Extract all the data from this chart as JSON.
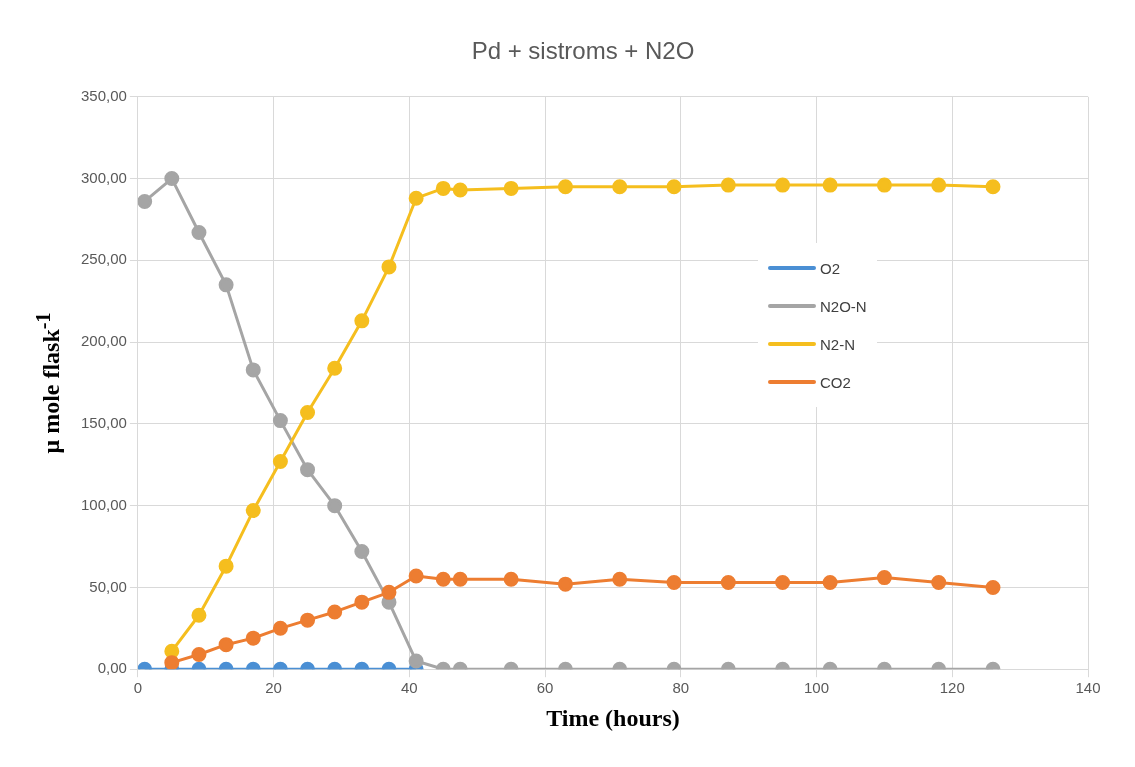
{
  "chart_data": {
    "type": "line",
    "title": "Pd + sistroms + N2O",
    "xlabel": "Time (hours)",
    "ylabel": "μ mole flask$^{-1}$",
    "xlim": [
      0,
      140
    ],
    "xticks": [
      0,
      20,
      40,
      60,
      80,
      100,
      120,
      140
    ],
    "ylim": [
      0,
      350
    ],
    "yticks": [
      {
        "value": 0,
        "label": "0,00"
      },
      {
        "value": 50,
        "label": "50,00"
      },
      {
        "value": 100,
        "label": "100,00"
      },
      {
        "value": 150,
        "label": "150,00"
      },
      {
        "value": 200,
        "label": "200,00"
      },
      {
        "value": 250,
        "label": "250,00"
      },
      {
        "value": 300,
        "label": "300,00"
      },
      {
        "value": 350,
        "label": "350,00"
      }
    ],
    "grid": true,
    "legend": "right",
    "marker": "circle",
    "line_style": "solid",
    "series": [
      {
        "name": "O2",
        "color": "#4a8fd4",
        "x": [
          1,
          5,
          9,
          13,
          17,
          21,
          25,
          29,
          33,
          37,
          41
        ],
        "values": [
          0,
          0,
          0,
          0,
          0,
          0,
          0,
          0,
          0,
          0,
          0
        ]
      },
      {
        "name": "N2O-N",
        "color": "#a5a5a5",
        "x": [
          1,
          5,
          9,
          13,
          17,
          21,
          25,
          29,
          33,
          37,
          41,
          45,
          47.5,
          55,
          63,
          71,
          79,
          87,
          95,
          102,
          110,
          118,
          126
        ],
        "values": [
          286,
          300,
          267,
          235,
          183,
          152,
          122,
          100,
          72,
          41,
          5,
          0,
          0,
          0,
          0,
          0,
          0,
          0,
          0,
          0,
          0,
          0,
          0
        ]
      },
      {
        "name": "N2-N",
        "color": "#f5be1e",
        "x": [
          5,
          9,
          13,
          17,
          21,
          25,
          29,
          33,
          37,
          41,
          45,
          47.5,
          55,
          63,
          71,
          79,
          87,
          95,
          102,
          110,
          118,
          126
        ],
        "values": [
          11,
          33,
          63,
          97,
          127,
          157,
          184,
          213,
          246,
          288,
          294,
          293,
          294,
          295,
          295,
          295,
          296,
          296,
          296,
          296,
          296,
          295
        ]
      },
      {
        "name": "CO2",
        "color": "#ed7d31",
        "x": [
          5,
          9,
          13,
          17,
          21,
          25,
          29,
          33,
          37,
          41,
          45,
          47.5,
          55,
          63,
          71,
          79,
          87,
          95,
          102,
          110,
          118,
          126
        ],
        "values": [
          4,
          9,
          15,
          19,
          25,
          30,
          35,
          41,
          47,
          57,
          55,
          55,
          55,
          52,
          55,
          53,
          53,
          53,
          53,
          56,
          53,
          50
        ]
      }
    ]
  }
}
